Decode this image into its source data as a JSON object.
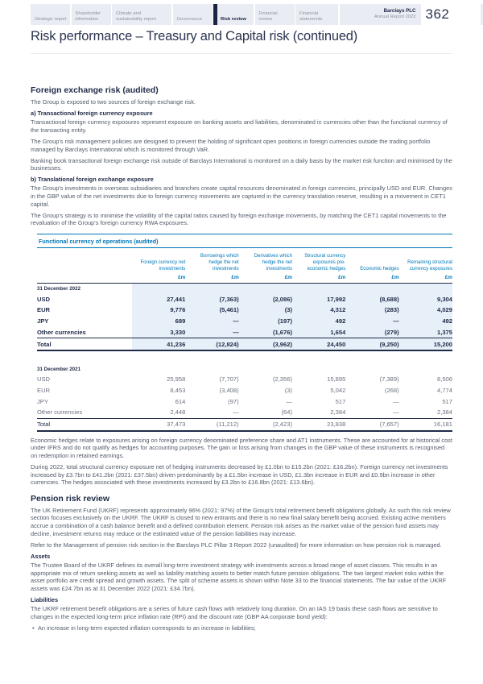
{
  "colors": {
    "accent_blue": "#0077b8",
    "navy": "#1f2a47",
    "row_shading": "#e7eff8",
    "nav_bg": "#e9ecf2"
  },
  "nav": {
    "tabs": [
      {
        "label": "Strategic report",
        "active": false
      },
      {
        "label": "Shareholder information",
        "active": false
      },
      {
        "label": "Climate and sustainability report",
        "active": false
      },
      {
        "label": "Governance",
        "active": false
      },
      {
        "label": "Risk review",
        "active": true
      },
      {
        "label": "Financial review",
        "active": false
      },
      {
        "label": "Financial statements",
        "active": false
      }
    ],
    "brand_line1": "Barclays PLC",
    "brand_line2": "Annual Report 2022",
    "page_number": "362"
  },
  "page_title": "Risk performance – Treasury and Capital risk (continued)",
  "body_blocks": [
    {
      "type": "h2",
      "text": "Foreign exchange risk (audited)"
    },
    {
      "type": "p",
      "text": "The Group is exposed to two sources of foreign exchange risk."
    },
    {
      "type": "h3",
      "text": "a) Transactional foreign currency exposure"
    },
    {
      "type": "p",
      "text": "Transactional foreign currency exposures represent exposure on banking assets and liabilities, denominated in currencies other than the functional currency of the transacting entity."
    },
    {
      "type": "p",
      "text": "The Group's risk management policies are designed to prevent the holding of significant open positions in foreign currencies outside the trading portfolio managed by Barclays International which is monitored through VaR."
    },
    {
      "type": "p",
      "text": "Banking book transactional foreign exchange risk outside of Barclays International is monitored on a daily basis by the market risk function and minimised by the businesses."
    },
    {
      "type": "h3",
      "text": "b) Translational foreign exchange exposure"
    },
    {
      "type": "p",
      "text": "The Group's investments in overseas subsidiaries and branches create capital resources denominated in foreign currencies, principally USD and EUR. Changes in the GBP value of the net investments due to foreign currency movements are captured in the currency translation reserve, resulting in a movement in CET1 capital."
    },
    {
      "type": "p",
      "text": "The Group's strategy is to minimise the volatility of the capital ratios caused by foreign exchange movements, by matching the CET1 capital movements to the revaluation of the Group's foreign currency RWA exposures."
    }
  ],
  "table": {
    "title": "Functional currency of operations (audited)",
    "columns": [
      "Foreign currency net investments",
      "Borrowings which hedge the net investments",
      "Derivatives which hedge the net investments",
      "Structural currency exposures pre-economic hedges",
      "Economic hedges",
      "Remaining structural currency exposures"
    ],
    "unit": "£m",
    "sections": [
      {
        "label": "31 December 2022",
        "shaded": true,
        "emphasis": true,
        "rows": [
          {
            "label": "USD",
            "values": [
              "27,441",
              "(7,363)",
              "(2,086)",
              "17,992",
              "(8,688)",
              "9,304"
            ]
          },
          {
            "label": "EUR",
            "values": [
              "9,776",
              "(5,461)",
              "(3)",
              "4,312",
              "(283)",
              "4,029"
            ]
          },
          {
            "label": "JPY",
            "values": [
              "689",
              "—",
              "(197)",
              "492",
              "—",
              "492"
            ]
          },
          {
            "label": "Other currencies",
            "values": [
              "3,330",
              "—",
              "(1,676)",
              "1,654",
              "(279)",
              "1,375"
            ]
          },
          {
            "label": "Total",
            "total": true,
            "values": [
              "41,236",
              "(12,824)",
              "(3,962)",
              "24,450",
              "(9,250)",
              "15,200"
            ]
          }
        ]
      },
      {
        "label": "31 December 2021",
        "shaded": false,
        "emphasis": false,
        "rows": [
          {
            "label": "USD",
            "values": [
              "25,958",
              "(7,707)",
              "(2,356)",
              "15,895",
              "(7,389)",
              "8,506"
            ]
          },
          {
            "label": "EUR",
            "values": [
              "8,453",
              "(3,408)",
              "(3)",
              "5,042",
              "(268)",
              "4,774"
            ]
          },
          {
            "label": "JPY",
            "values": [
              "614",
              "(97)",
              "—",
              "517",
              "—",
              "517"
            ]
          },
          {
            "label": "Other currencies",
            "values": [
              "2,448",
              "—",
              "(64)",
              "2,384",
              "—",
              "2,384"
            ]
          },
          {
            "label": "Total",
            "total": true,
            "values": [
              "37,473",
              "(11,212)",
              "(2,423)",
              "23,838",
              "(7,657)",
              "16,181"
            ]
          }
        ]
      }
    ]
  },
  "after_table_blocks": [
    {
      "type": "p",
      "text": "Economic hedges relate to exposures arising on foreign currency denominated preference share and AT1 instruments. These are accounted for at historical cost under IFRS and do not qualify as hedges for accounting purposes. The gain or loss arising from changes in the GBP value of these instruments is recognised on redemption in retained earnings."
    },
    {
      "type": "p",
      "text": "During 2022, total structural currency exposure net of hedging instruments decreased by £1.0bn to £15.2bn (2021: £16.2bn). Foreign currency net investments increased by £3.7bn to £41.2bn (2021: £37.5bn) driven predominantly by a £1.5bn increase in USD, £1.3bn increase in EUR and £0.9bn increase in other currencies. The hedges associated with these investments increased by £3.2bn to £16.8bn (2021: £13.6bn)."
    },
    {
      "type": "h2",
      "text": "Pension risk review"
    },
    {
      "type": "p",
      "text": "The UK Retirement Fund (UKRF) represents approximately 96% (2021: 97%) of the Group's total retirement benefit obligations globally. As such this risk review section focuses exclusively on the UKRF. The UKRF is closed to new entrants and there is no new final salary benefit being accrued. Existing active members accrue a combination of a cash balance benefit and a defined contribution element. Pension risk arises as the market value of the pension fund assets may decline, investment returns may reduce or the estimated value of the pension liabilities may increase."
    },
    {
      "type": "p",
      "text": "Refer to the Management of pension risk section in the Barclays PLC Pillar 3 Report 2022 (unaudited) for more information on how pension risk is managed."
    },
    {
      "type": "h3",
      "text": "Assets"
    },
    {
      "type": "p",
      "text": "The Trustee Board of the UKRF defines its overall long-term investment strategy with investments across a broad range of asset classes. This results in an appropriate mix of return seeking assets as well as liability matching assets to better match future pension obligations. The two largest market risks within the asset portfolio are credit spread and growth assets. The split of scheme assets is shown within Note 33 to the financial statements. The fair value of the UKRF assets was £24.7bn as at 31 December 2022 (2021: £34.7bn)."
    },
    {
      "type": "h3",
      "text": "Liabilities"
    },
    {
      "type": "p",
      "text": "The UKRF retirement benefit obligations are a series of future cash flows with relatively long duration. On an IAS 19 basis these cash flows are sensitive to changes in the expected long-term price inflation rate (RPI) and the discount rate (GBP AA corporate bond yield):"
    },
    {
      "type": "bullet",
      "text": "An increase in long-term expected inflation corresponds to an increase in liabilities;"
    }
  ]
}
